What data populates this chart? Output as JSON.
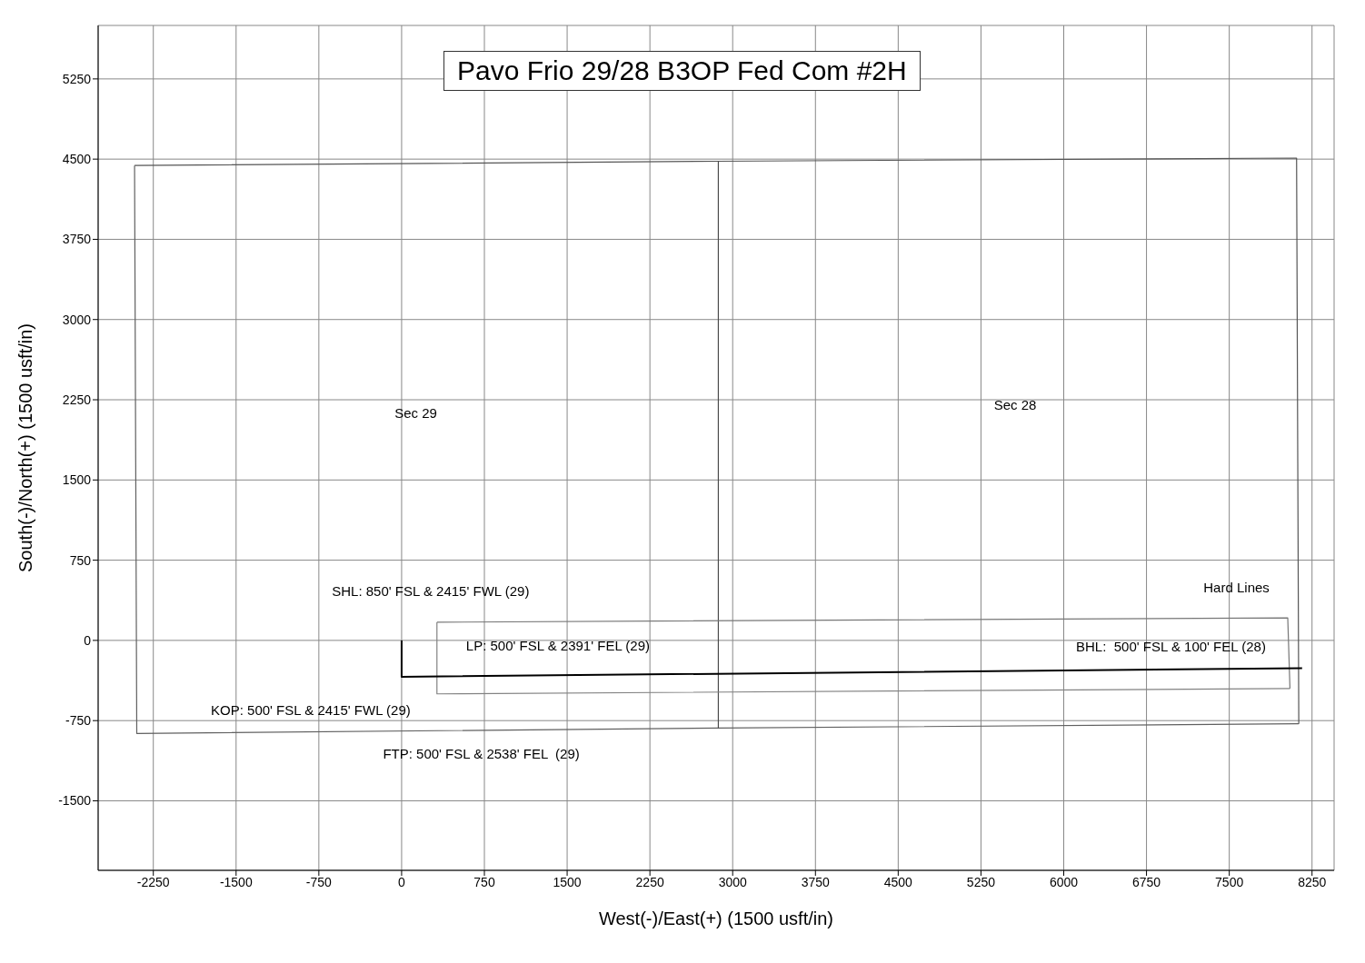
{
  "chart_data": {
    "type": "line",
    "title": "Pavo Frio 29/28 B3OP Fed Com #2H",
    "xlabel": "West(-)/East(+) (1500 usft/in)",
    "ylabel": "South(-)/North(+) (1500 usft/in)",
    "xlim": [
      -2750,
      8450
    ],
    "ylim": [
      -2150,
      5750
    ],
    "xticks": [
      -2250,
      -1500,
      -750,
      0,
      750,
      1500,
      2250,
      3000,
      3750,
      4500,
      5250,
      6000,
      6750,
      7500,
      8250
    ],
    "yticks": [
      -1500,
      -750,
      0,
      750,
      1500,
      2250,
      3000,
      3750,
      4500,
      5250
    ],
    "grid": true,
    "marker": "none",
    "line_style": "solid",
    "series": [
      {
        "color": "#555555",
        "x": [
          -2420,
          2870,
          8110,
          8130
        ],
        "values": [
          4440,
          4480,
          4510,
          -780
        ]
      },
      {
        "color": "#606060",
        "x": [
          -2420,
          -2400,
          2870,
          8130
        ],
        "values": [
          4440,
          -870,
          -820,
          -780
        ]
      },
      {
        "color": "#4a4a4a",
        "x": [
          2870,
          2870
        ],
        "values": [
          4480,
          -820
        ]
      },
      {
        "color": "#777777",
        "x": [
          320,
          8030,
          8050
        ],
        "values": [
          170,
          210,
          -450
        ]
      },
      {
        "color": "#828282",
        "x": [
          320,
          320,
          8050
        ],
        "values": [
          170,
          -500,
          -450
        ]
      },
      {
        "color": "#000000",
        "x": [
          0,
          0,
          8160
        ],
        "values": [
          0,
          -340,
          -260
        ]
      }
    ],
    "annotations": [
      "Sec 29",
      "Sec 28",
      "SHL: 850' FSL & 2415' FWL (29)",
      "LP: 500' FSL & 2391' FEL (29)",
      "KOP: 500' FSL & 2415' FWL (29)",
      "FTP: 500' FSL & 2538' FEL  (29)",
      "BHL:  500' FSL & 100' FEL (28)",
      "Hard Lines"
    ]
  }
}
